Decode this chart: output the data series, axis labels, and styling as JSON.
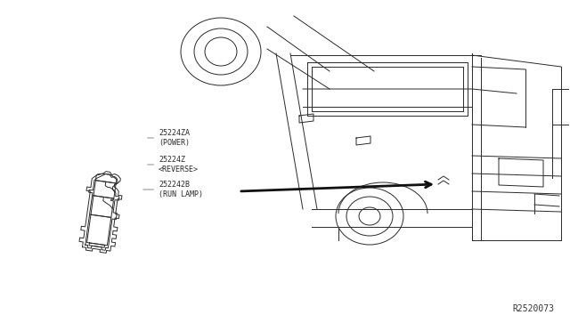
{
  "bg_color": "#ffffff",
  "part_number": "R2520073",
  "label1_text": "25224ZA\n(POWER)",
  "label2_text": "25224Z\n<REVERSE>",
  "label3_text": "252242B\n(RUN LAMP)",
  "font_size": 6.0,
  "line_color": "#2a2a2a",
  "label_color": "#2a2a2a",
  "arrow_lw": 1.8,
  "relay_lw": 0.7
}
